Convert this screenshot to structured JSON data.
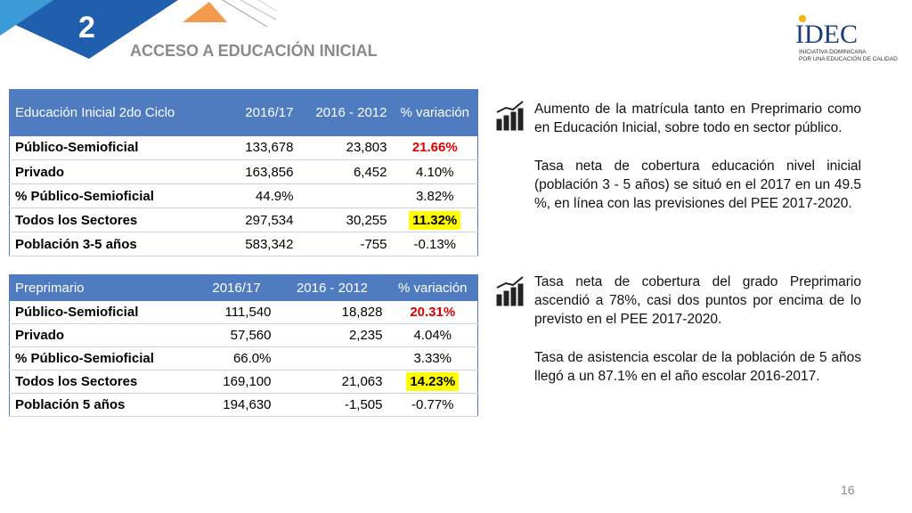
{
  "header": {
    "number": "2",
    "title": "ACCESO A EDUCACIÓN INICIAL"
  },
  "logo": {
    "name": "IDEC",
    "tagline": [
      "INICIATIVA DOMINICANA",
      "POR UNA EDUCACIÓN DE CALIDAD"
    ]
  },
  "tables": [
    {
      "columns": [
        "Educación Inicial 2do Ciclo",
        "2016/17",
        "2016 - 2012",
        "% variación"
      ],
      "rows": [
        [
          "Público-Semioficial",
          "133,678",
          "23,803",
          "21.66%"
        ],
        [
          "Privado",
          "163,856",
          "6,452",
          "4.10%"
        ],
        [
          "% Público-Semioficial",
          "44.9%",
          null,
          "3.82%"
        ],
        [
          "Todos los Sectores",
          "297,534",
          "30,255",
          "11.32%"
        ],
        [
          "Población 3-5 años",
          "583,342",
          "-755",
          "-0.13%"
        ]
      ]
    },
    {
      "columns": [
        "Preprimario",
        "2016/17",
        "2016 - 2012",
        "% variación"
      ],
      "rows": [
        [
          "Público-Semioficial",
          "111,540",
          "18,828",
          "20.31%"
        ],
        [
          "Privado",
          "57,560",
          "2,235",
          "4.04%"
        ],
        [
          "% Público-Semioficial",
          "66.0%",
          null,
          "3.33%"
        ],
        [
          "Todos los Sectores",
          "169,100",
          "21,063",
          "14.23%"
        ],
        [
          "Población 5 años",
          "194,630",
          "-1,505",
          "-0.77%"
        ]
      ]
    }
  ],
  "bullets": [
    {
      "paragraphs": [
        "Aumento de la matrícula tanto en Preprimario como en Educación Inicial, sobre todo en sector público.",
        "Tasa neta de cobertura educación nivel inicial (población 3 - 5 años) se situó en el 2017 en un 49.5 %, en línea con las previsiones del PEE 2017-2020."
      ]
    },
    {
      "paragraphs": [
        "Tasa neta de cobertura del grado Preprimario ascendió a 78%, casi dos puntos por encima de lo previsto en el PEE 2017-2020.",
        "Tasa de asistencia escolar de la población de 5 años llegó a un 87.1% en el año escolar 2016-2017."
      ]
    }
  ],
  "page_number": "16"
}
